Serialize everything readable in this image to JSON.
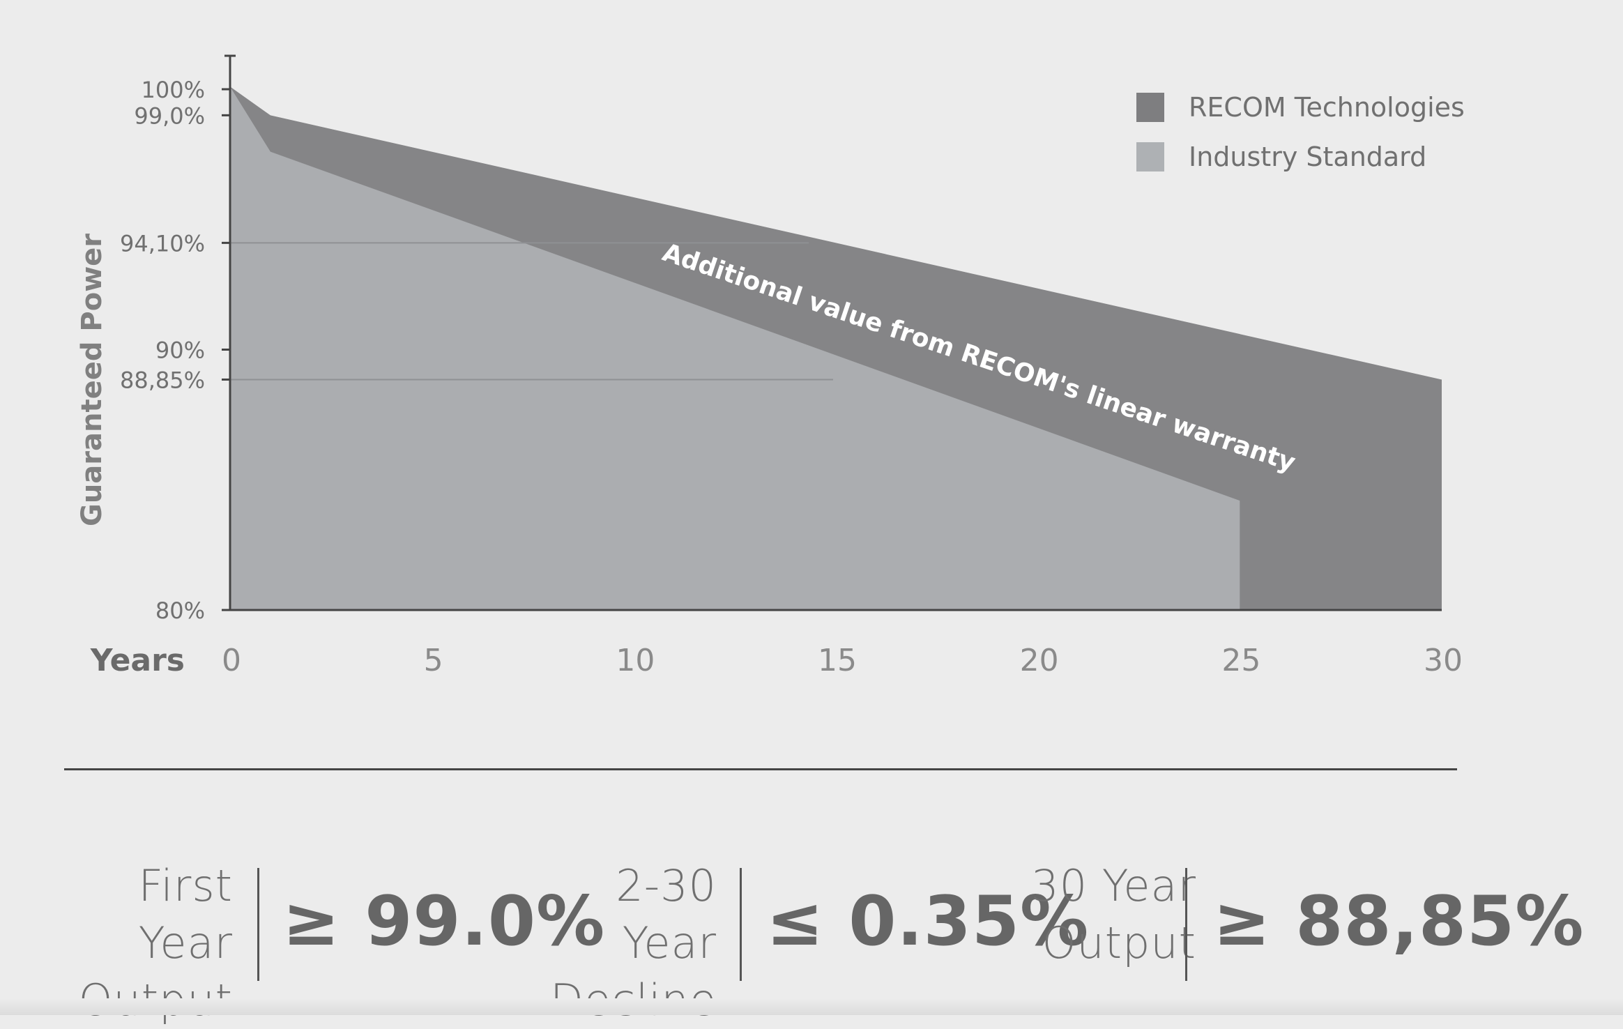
{
  "chart_data": {
    "type": "area",
    "ylabel": "Guaranteed Power",
    "xlabel": "Years",
    "xlim": [
      0,
      30
    ],
    "ylim": [
      80,
      101.5
    ],
    "x_ticks": [
      "0",
      "5",
      "10",
      "15",
      "20",
      "25",
      "30"
    ],
    "y_ticks": [
      {
        "value": 100,
        "label": "100%"
      },
      {
        "value": 99.0,
        "label": "99,0%"
      },
      {
        "value": 94.1,
        "label": "94,10%"
      },
      {
        "value": 90,
        "label": "90%"
      },
      {
        "value": 88.85,
        "label": "88,85%"
      },
      {
        "value": 80,
        "label": "80%"
      }
    ],
    "series": [
      {
        "name": "RECOM Technologies",
        "color": "#858587",
        "points": [
          [
            0,
            100.1
          ],
          [
            1,
            99.0
          ],
          [
            30,
            88.85
          ]
        ]
      },
      {
        "name": "Industry Standard",
        "color": "#abadb0",
        "points": [
          [
            0,
            100.1
          ],
          [
            1,
            97.6
          ],
          [
            25,
            84.2
          ]
        ]
      }
    ],
    "annotation": "Additional value from RECOM's linear warranty",
    "legend_position": "top-right"
  },
  "stats": [
    {
      "label_line1": "First Year",
      "label_line2": "Output",
      "value": "≥ 99.0%"
    },
    {
      "label_line1": "2-30 Year",
      "label_line2": "Decline",
      "value": "≤ 0.35%"
    },
    {
      "label_line1": "30 Year",
      "label_line2": "Output",
      "value": "≥ 88,85%"
    }
  ]
}
